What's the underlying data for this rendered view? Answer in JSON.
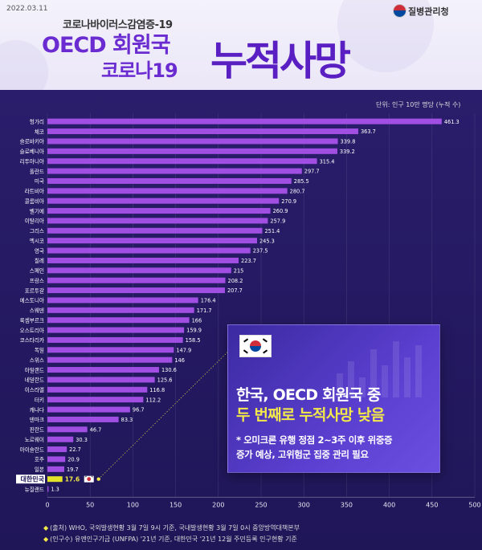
{
  "header": {
    "date": "2022.03.11",
    "agency": "질병관리청",
    "subtitle": "코로나바이러스감염증-19",
    "title_line1": "OECD 회원국",
    "title_line2": "코로나19",
    "title_big": "누적사망"
  },
  "unit_label": "단위: 인구 10만 명당 (누적 수)",
  "chart_data": {
    "type": "bar",
    "orientation": "horizontal",
    "categories": [
      "헝가리",
      "체코",
      "슬로바키아",
      "슬로베니아",
      "리투아니아",
      "폴란드",
      "미국",
      "라트비아",
      "콜롬비아",
      "벨기에",
      "이탈리아",
      "그리스",
      "멕시코",
      "영국",
      "칠레",
      "스페인",
      "프랑스",
      "포르투갈",
      "에스토니아",
      "스웨덴",
      "룩셈부르크",
      "오스트리아",
      "코스타리카",
      "독일",
      "스위스",
      "아일랜드",
      "네덜란드",
      "이스라엘",
      "터키",
      "캐나다",
      "덴마크",
      "핀란드",
      "노르웨이",
      "아이슬란드",
      "호주",
      "일본",
      "대한민국",
      "뉴질랜드"
    ],
    "values": [
      461.3,
      363.7,
      339.8,
      339.2,
      315.4,
      297.7,
      285.5,
      280.7,
      270.9,
      260.9,
      257.9,
      251.4,
      245.3,
      237.5,
      223.7,
      215,
      208.2,
      207.7,
      176.4,
      171.7,
      166,
      159.9,
      158.5,
      147.9,
      146,
      130.6,
      125.6,
      116.8,
      112.2,
      96.7,
      83.3,
      46.7,
      30.3,
      22.7,
      20.9,
      19.7,
      17.6,
      1.3
    ],
    "value_labels": [
      "461.3",
      "363.7",
      "339.8",
      "339.2",
      "315.4",
      "297.7",
      "285.5",
      "280.7",
      "270.9",
      "260.9",
      "257.9",
      "251.4",
      "245.3",
      "237.5",
      "223.7",
      "215",
      "208.2",
      "207.7",
      "176.4",
      "171.7",
      "166",
      "159.9",
      "158.5",
      "147.9",
      "146",
      "130.6",
      "125.6",
      "116.8",
      "112.2",
      "96.7",
      "83.3",
      "46.7",
      "30.3",
      "22.7",
      "20.9",
      "19.7",
      "17.6",
      "1.3"
    ],
    "highlight": "대한민국",
    "xlim": [
      0,
      500
    ],
    "xticks": [
      "0",
      "50",
      "100",
      "150",
      "200",
      "250",
      "300",
      "350",
      "400",
      "450",
      "500"
    ],
    "grid": true,
    "colors": {
      "bar": "#a14fe3",
      "highlight": "#e3e32a",
      "background": "#231a60"
    }
  },
  "callout": {
    "line1": "한국, OECD 회원국 중",
    "line2": "두 번째로 누적사망 낮음",
    "line3": "* 오미크론 유행 정점 2~3주 이후 위중증\n   증가 예상, 고위험군 집중 관리 필요"
  },
  "notes": [
    "(출처) WHO, 국외발생현황 3월 7일 9시 기준, 국내발생현황 3월 7일 0시 중앙방역대책본부",
    "(인구수) 유엔인구기금 (UNFPA) '21년 기준, 대한민국 '21년 12월 주민등록 인구현황 기준"
  ]
}
